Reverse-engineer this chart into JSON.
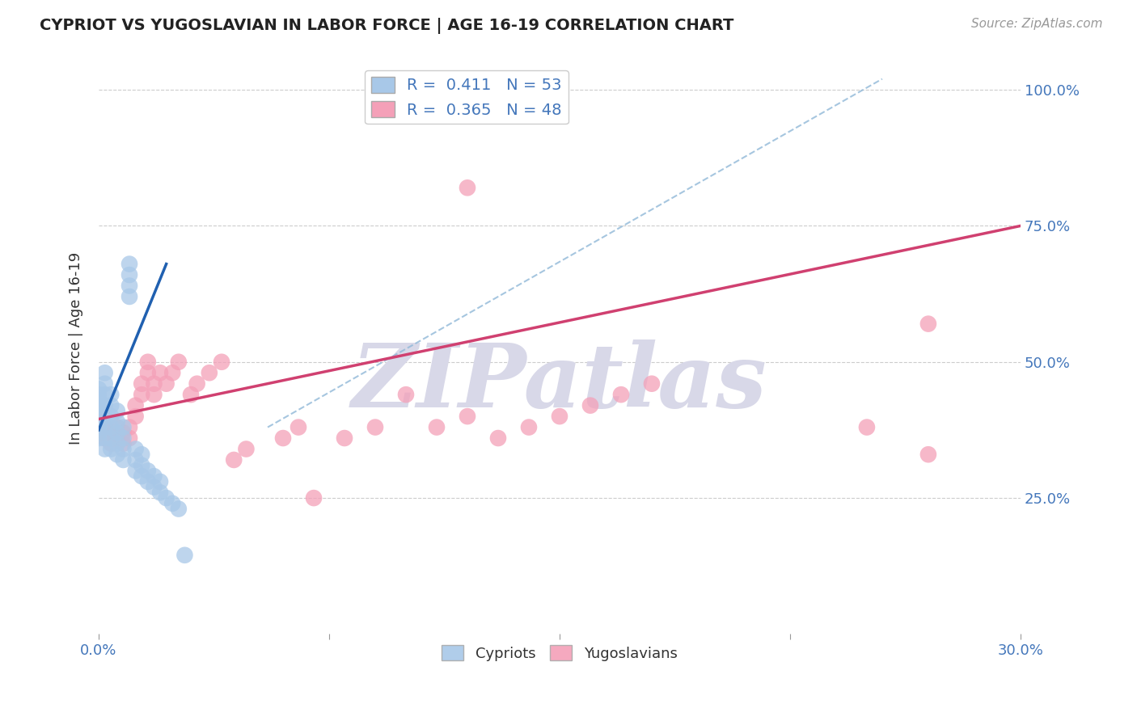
{
  "title": "CYPRIOT VS YUGOSLAVIAN IN LABOR FORCE | AGE 16-19 CORRELATION CHART",
  "source": "Source: ZipAtlas.com",
  "ylabel": "In Labor Force | Age 16-19",
  "xlim": [
    0.0,
    0.3
  ],
  "ylim": [
    0.0,
    1.05
  ],
  "blue_R": 0.411,
  "blue_N": 53,
  "pink_R": 0.365,
  "pink_N": 48,
  "blue_color": "#a8c8e8",
  "pink_color": "#f4a0b8",
  "blue_line_color": "#2060b0",
  "pink_line_color": "#d04070",
  "blue_dash_color": "#90b8d8",
  "grid_color": "#cccccc",
  "background_color": "#ffffff",
  "watermark": "ZIPatlas",
  "watermark_color": "#d8d8e8",
  "blue_line_x0": 0.0,
  "blue_line_y0": 0.375,
  "blue_line_x1": 0.022,
  "blue_line_y1": 0.68,
  "pink_line_x0": 0.0,
  "pink_line_y0": 0.395,
  "pink_line_x1": 0.3,
  "pink_line_y1": 0.75,
  "diag_line_x0": 0.055,
  "diag_line_y0": 0.38,
  "diag_line_x1": 0.255,
  "diag_line_y1": 1.02,
  "blue_scatter_x": [
    0.0,
    0.0,
    0.0,
    0.0,
    0.0,
    0.0,
    0.0,
    0.0,
    0.0,
    0.0,
    0.002,
    0.002,
    0.002,
    0.002,
    0.002,
    0.002,
    0.002,
    0.002,
    0.004,
    0.004,
    0.004,
    0.004,
    0.004,
    0.004,
    0.006,
    0.006,
    0.006,
    0.006,
    0.006,
    0.008,
    0.008,
    0.008,
    0.008,
    0.01,
    0.01,
    0.01,
    0.01,
    0.012,
    0.012,
    0.012,
    0.014,
    0.014,
    0.014,
    0.016,
    0.016,
    0.018,
    0.018,
    0.02,
    0.02,
    0.022,
    0.024,
    0.026,
    0.028
  ],
  "blue_scatter_y": [
    0.36,
    0.37,
    0.38,
    0.39,
    0.4,
    0.41,
    0.42,
    0.43,
    0.44,
    0.45,
    0.34,
    0.36,
    0.38,
    0.4,
    0.42,
    0.44,
    0.46,
    0.48,
    0.34,
    0.36,
    0.38,
    0.4,
    0.42,
    0.44,
    0.33,
    0.35,
    0.37,
    0.39,
    0.41,
    0.32,
    0.34,
    0.36,
    0.38,
    0.62,
    0.64,
    0.66,
    0.68,
    0.3,
    0.32,
    0.34,
    0.29,
    0.31,
    0.33,
    0.28,
    0.3,
    0.27,
    0.29,
    0.26,
    0.28,
    0.25,
    0.24,
    0.23,
    0.145
  ],
  "pink_scatter_x": [
    0.0,
    0.0,
    0.002,
    0.002,
    0.004,
    0.004,
    0.006,
    0.006,
    0.008,
    0.008,
    0.01,
    0.01,
    0.012,
    0.012,
    0.014,
    0.014,
    0.016,
    0.016,
    0.018,
    0.018,
    0.02,
    0.022,
    0.024,
    0.026,
    0.03,
    0.032,
    0.036,
    0.04,
    0.044,
    0.048,
    0.06,
    0.065,
    0.07,
    0.08,
    0.09,
    0.1,
    0.11,
    0.12,
    0.13,
    0.14,
    0.15,
    0.16,
    0.17,
    0.18,
    0.12,
    0.25,
    0.27,
    0.27
  ],
  "pink_scatter_y": [
    0.37,
    0.39,
    0.36,
    0.38,
    0.35,
    0.37,
    0.36,
    0.38,
    0.35,
    0.37,
    0.36,
    0.38,
    0.4,
    0.42,
    0.44,
    0.46,
    0.48,
    0.5,
    0.44,
    0.46,
    0.48,
    0.46,
    0.48,
    0.5,
    0.44,
    0.46,
    0.48,
    0.5,
    0.32,
    0.34,
    0.36,
    0.38,
    0.25,
    0.36,
    0.38,
    0.44,
    0.38,
    0.4,
    0.36,
    0.38,
    0.4,
    0.42,
    0.44,
    0.46,
    0.82,
    0.38,
    0.57,
    0.33
  ]
}
